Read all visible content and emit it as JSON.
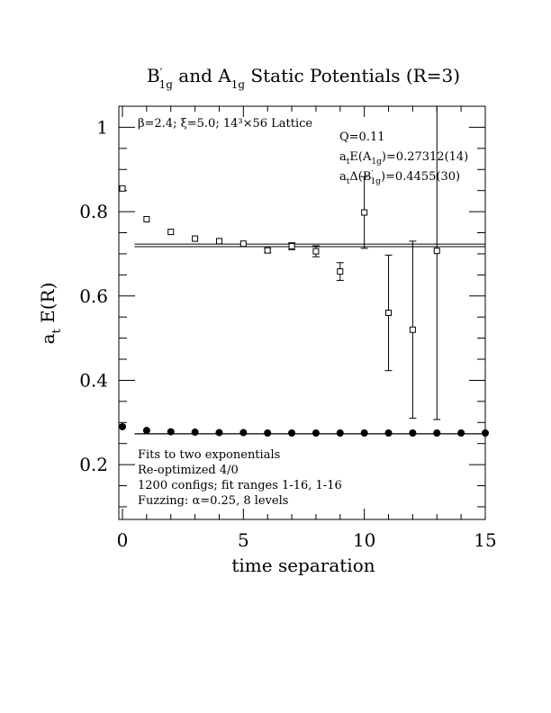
{
  "chart_data": {
    "type": "scatter",
    "title": {
      "B": "B",
      "B_prime": "′",
      "B_sub": "1g",
      "mid": " and A",
      "A_sub": "1g",
      "end": " Static Potentials (R=3)"
    },
    "xlabel": "time separation",
    "ylabel": {
      "main": "a",
      "sub": "t",
      "rest": " E(R)"
    },
    "xlim": [
      0,
      15
    ],
    "ylim": [
      0.07,
      1.05
    ],
    "xticks": [
      0,
      5,
      10,
      15
    ],
    "xtick_labels": [
      "0",
      "5",
      "10",
      "15"
    ],
    "yticks": [
      0.2,
      0.4,
      0.6,
      0.8,
      1.0
    ],
    "ytick_labels": [
      "0.2",
      "0.4",
      "0.6",
      "0.8",
      "1"
    ],
    "grid": false,
    "lattice_label": "β=2.4; ξ=5.0; 14³×56 Lattice",
    "fit_annotations": {
      "q": "Q=0.11",
      "a1g": {
        "pre": "a",
        "pre_sub": "t",
        "mid": "E(A",
        "mid_sub": "1g",
        "post": ")=0.27312(14)"
      },
      "b1g": {
        "pre": "a",
        "pre_sub": "t",
        "mid": "Δ(B",
        "prime": "′",
        "mid_sub": "1g",
        "post": ")=0.4455(30)"
      }
    },
    "notes": [
      "Fits to two exponentials",
      "Re-optimized 4/0",
      "1200 configs; fit ranges 1-16, 1-16",
      "Fuzzing: α=0.25, 8 levels"
    ],
    "series": [
      {
        "marker": "open-square",
        "x": [
          0,
          1,
          2,
          3,
          4,
          5,
          6,
          7,
          8,
          9,
          10,
          11,
          12,
          13
        ],
        "y": [
          0.855,
          0.782,
          0.752,
          0.736,
          0.73,
          0.724,
          0.708,
          0.718,
          0.706,
          0.658,
          0.798,
          0.56,
          0.52,
          0.707
        ],
        "err": [
          0.002,
          0.002,
          0.002,
          0.003,
          0.003,
          0.004,
          0.005,
          0.008,
          0.013,
          0.021,
          0.085,
          0.137,
          0.21,
          0.4
        ]
      },
      {
        "marker": "filled-circle",
        "x": [
          0,
          1,
          2,
          3,
          4,
          5,
          6,
          7,
          8,
          9,
          10,
          11,
          12,
          13,
          14,
          15
        ],
        "y": [
          0.29,
          0.281,
          0.278,
          0.277,
          0.276,
          0.276,
          0.275,
          0.275,
          0.275,
          0.275,
          0.275,
          0.275,
          0.275,
          0.275,
          0.275,
          0.275
        ],
        "err": [
          0.001,
          0.001,
          0.001,
          0.001,
          0.001,
          0.001,
          0.001,
          0.001,
          0.001,
          0.001,
          0.001,
          0.001,
          0.001,
          0.001,
          0.001,
          0.001
        ]
      }
    ],
    "fit_bands": [
      {
        "from": 0.5,
        "to": 15,
        "y_low": 0.717,
        "y_high": 0.723
      },
      {
        "from": 0.5,
        "to": 15,
        "y_low": 0.2728,
        "y_high": 0.2734
      }
    ]
  }
}
